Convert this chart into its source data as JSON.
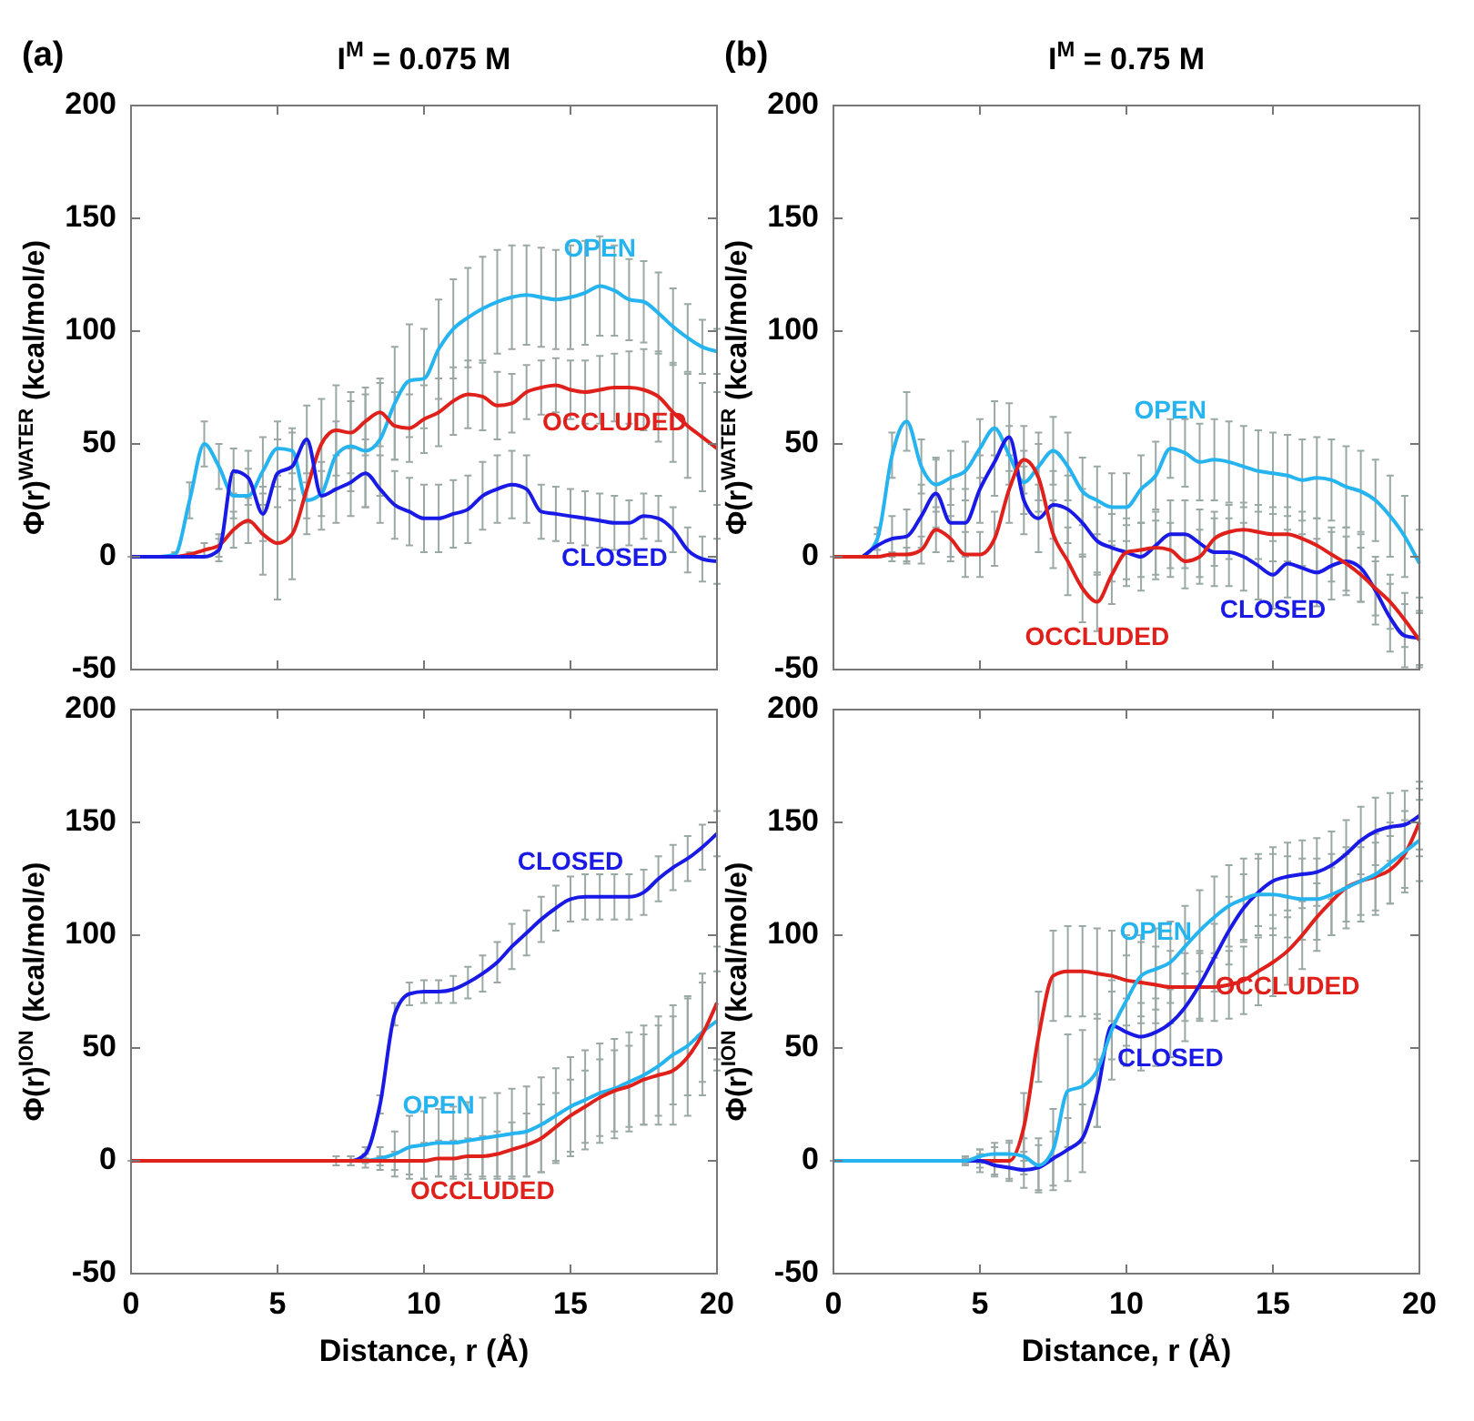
{
  "chart_data": [
    {
      "type": "line",
      "title": "I$^{M}$ = 0.075 M",
      "annotations": [
        "(a)"
      ],
      "ylabel": "Φ(r)$^{WATER}$ (kcal/mol/e)",
      "xlim": [
        0,
        20
      ],
      "xticks": [
        0,
        5,
        10,
        15,
        20
      ],
      "ylim": [
        -50,
        200
      ],
      "yticks": [
        -50,
        0,
        50,
        100,
        150,
        200
      ],
      "tick_labels": "y",
      "x": [
        0,
        0.5,
        1,
        1.5,
        2,
        2.5,
        3,
        3.5,
        4,
        4.5,
        5,
        5.5,
        6,
        6.5,
        7,
        7.5,
        8,
        8.5,
        9,
        9.5,
        10,
        10.5,
        11,
        11.5,
        12,
        12.5,
        13,
        13.5,
        14,
        14.5,
        15,
        15.5,
        16,
        16.5,
        17,
        17.5,
        18,
        18.5,
        19,
        19.5,
        20
      ],
      "series": [
        {
          "name": "OPEN",
          "color": "#25b4ef",
          "values": [
            null,
            null,
            0,
            1,
            25,
            50,
            40,
            27,
            27,
            38,
            48,
            47,
            25,
            28,
            45,
            49,
            47,
            52,
            68,
            78,
            79,
            92,
            101,
            106,
            110,
            113,
            115,
            116,
            115,
            114,
            115,
            117,
            120,
            118,
            114,
            113,
            108,
            102,
            97,
            93,
            91
          ],
          "errors": [
            null,
            null,
            0,
            1,
            8,
            10,
            10,
            10,
            12,
            15,
            12,
            10,
            8,
            10,
            15,
            20,
            25,
            25,
            25,
            25,
            22,
            22,
            22,
            22,
            23,
            23,
            23,
            22,
            22,
            22,
            23,
            23,
            22,
            20,
            18,
            18,
            18,
            17,
            15,
            12,
            10
          ]
        },
        {
          "name": "OCCLUDED",
          "color": "#e0201b",
          "values": [
            null,
            null,
            0,
            0,
            1,
            3,
            5,
            12,
            16,
            10,
            6,
            10,
            30,
            50,
            56,
            55,
            60,
            64,
            58,
            57,
            61,
            64,
            69,
            72,
            71,
            67,
            68,
            73,
            75,
            76,
            74,
            73,
            74,
            75,
            75,
            74,
            71,
            64,
            58,
            53,
            48
          ],
          "errors": [
            null,
            null,
            0,
            0,
            1,
            3,
            5,
            8,
            10,
            18,
            25,
            20,
            20,
            20,
            20,
            18,
            15,
            15,
            15,
            15,
            15,
            15,
            15,
            15,
            15,
            15,
            13,
            12,
            12,
            12,
            13,
            14,
            15,
            15,
            16,
            18,
            20,
            22,
            23,
            24,
            25
          ]
        },
        {
          "name": "CLOSED",
          "color": "#1a1ae6",
          "values": [
            0,
            0,
            0,
            0,
            0,
            0,
            3,
            38,
            35,
            19,
            37,
            40,
            52,
            27,
            30,
            33,
            37,
            30,
            23,
            20,
            17,
            17,
            19,
            21,
            27,
            30,
            32,
            30,
            20,
            19,
            18,
            17,
            16,
            15,
            15,
            18,
            17,
            12,
            3,
            -1,
            -2
          ],
          "errors": [
            0,
            0,
            0,
            0,
            0,
            0,
            5,
            10,
            12,
            12,
            15,
            15,
            15,
            15,
            15,
            15,
            15,
            15,
            15,
            15,
            15,
            15,
            15,
            15,
            15,
            15,
            15,
            15,
            12,
            12,
            12,
            12,
            12,
            12,
            10,
            10,
            10,
            10,
            10,
            10,
            10
          ]
        }
      ]
    },
    {
      "type": "line",
      "title": "I$^{M}$ = 0.75 M",
      "annotations": [
        "(b)"
      ],
      "ylabel": "Φ(r)$^{WATER}$ (kcal/mol/e)",
      "xlim": [
        0,
        20
      ],
      "xticks": [
        0,
        5,
        10,
        15,
        20
      ],
      "ylim": [
        -50,
        200
      ],
      "yticks": [
        -50,
        0,
        50,
        100,
        150,
        200
      ],
      "tick_labels": "y",
      "x": [
        0,
        0.5,
        1,
        1.5,
        2,
        2.5,
        3,
        3.5,
        4,
        4.5,
        5,
        5.5,
        6,
        6.5,
        7,
        7.5,
        8,
        8.5,
        9,
        9.5,
        10,
        10.5,
        11,
        11.5,
        12,
        12.5,
        13,
        13.5,
        14,
        14.5,
        15,
        15.5,
        16,
        16.5,
        17,
        17.5,
        18,
        18.5,
        19,
        19.5,
        20
      ],
      "series": [
        {
          "name": "OPEN",
          "color": "#25b4ef",
          "values": [
            null,
            null,
            0,
            8,
            45,
            60,
            40,
            32,
            35,
            38,
            48,
            57,
            45,
            33,
            40,
            47,
            40,
            29,
            25,
            22,
            22,
            30,
            36,
            48,
            46,
            42,
            43,
            42,
            40,
            38,
            37,
            36,
            34,
            35,
            34,
            31,
            29,
            25,
            18,
            9,
            -3
          ],
          "errors": [
            null,
            null,
            0,
            5,
            10,
            13,
            12,
            12,
            12,
            13,
            13,
            12,
            13,
            14,
            15,
            15,
            15,
            15,
            15,
            15,
            15,
            15,
            15,
            13,
            15,
            17,
            18,
            18,
            18,
            18,
            18,
            18,
            18,
            18,
            18,
            18,
            18,
            18,
            18,
            18,
            15
          ]
        },
        {
          "name": "CLOSED",
          "color": "#1a1ae6",
          "values": [
            null,
            null,
            0,
            5,
            8,
            9,
            18,
            28,
            15,
            15,
            30,
            42,
            53,
            25,
            17,
            23,
            21,
            15,
            7,
            4,
            2,
            0,
            5,
            10,
            10,
            6,
            2,
            2,
            0,
            -4,
            -8,
            -3,
            -5,
            -7,
            -4,
            -2,
            -5,
            -15,
            -27,
            -35,
            -36
          ],
          "errors": [
            null,
            null,
            0,
            5,
            10,
            12,
            14,
            15,
            15,
            15,
            15,
            15,
            15,
            15,
            15,
            15,
            15,
            15,
            15,
            15,
            15,
            15,
            15,
            15,
            15,
            15,
            15,
            15,
            15,
            15,
            15,
            15,
            15,
            15,
            15,
            15,
            15,
            15,
            15,
            14,
            12
          ]
        },
        {
          "name": "OCCLUDED",
          "color": "#e0201b",
          "values": [
            0,
            0,
            0,
            0,
            1,
            1,
            3,
            12,
            8,
            1,
            1,
            8,
            30,
            43,
            35,
            10,
            -2,
            -14,
            -20,
            -8,
            2,
            3,
            4,
            3,
            -2,
            0,
            8,
            11,
            12,
            11,
            10,
            10,
            8,
            5,
            1,
            -3,
            -8,
            -14,
            -20,
            -28,
            -37
          ],
          "errors": [
            0,
            0,
            0,
            0,
            1,
            3,
            6,
            10,
            10,
            10,
            10,
            12,
            15,
            15,
            15,
            15,
            15,
            15,
            13,
            13,
            12,
            12,
            12,
            12,
            12,
            12,
            12,
            12,
            12,
            12,
            12,
            12,
            12,
            12,
            12,
            12,
            12,
            12,
            12,
            12,
            12
          ]
        }
      ]
    },
    {
      "type": "line",
      "xlabel": "Distance, r (Å)",
      "ylabel": "Φ(r)$^{ION}$ (kcal/mol/e)",
      "xlim": [
        0,
        20
      ],
      "xticks": [
        0,
        5,
        10,
        15,
        20
      ],
      "ylim": [
        -50,
        200
      ],
      "yticks": [
        -50,
        0,
        50,
        100,
        150,
        200
      ],
      "x": [
        0,
        0.5,
        1,
        1.5,
        2,
        2.5,
        3,
        3.5,
        4,
        4.5,
        5,
        5.5,
        6,
        6.5,
        7,
        7.5,
        8,
        8.5,
        9,
        9.5,
        10,
        10.5,
        11,
        11.5,
        12,
        12.5,
        13,
        13.5,
        14,
        14.5,
        15,
        15.5,
        16,
        16.5,
        17,
        17.5,
        18,
        18.5,
        19,
        19.5,
        20
      ],
      "series": [
        {
          "name": "CLOSED",
          "color": "#1a1ae6",
          "values": [
            null,
            null,
            null,
            null,
            null,
            null,
            null,
            null,
            null,
            null,
            null,
            null,
            null,
            null,
            0,
            0,
            3,
            25,
            65,
            74,
            75,
            75,
            76,
            79,
            83,
            88,
            95,
            101,
            107,
            112,
            116,
            117,
            117,
            117,
            117,
            119,
            125,
            130,
            134,
            139,
            145
          ],
          "errors": [
            null,
            null,
            null,
            null,
            null,
            null,
            null,
            null,
            null,
            null,
            null,
            null,
            null,
            null,
            2,
            2,
            3,
            4,
            5,
            5,
            5,
            5,
            6,
            7,
            8,
            9,
            10,
            10,
            10,
            10,
            10,
            10,
            10,
            10,
            10,
            10,
            10,
            10,
            10,
            10,
            10
          ]
        },
        {
          "name": "OPEN",
          "color": "#25b4ef",
          "values": [
            null,
            null,
            null,
            null,
            null,
            null,
            null,
            null,
            null,
            null,
            null,
            null,
            null,
            null,
            null,
            0,
            0,
            1,
            3,
            6,
            7,
            8,
            8,
            9,
            10,
            11,
            12,
            13,
            16,
            20,
            24,
            27,
            30,
            32,
            35,
            38,
            42,
            47,
            51,
            57,
            62
          ],
          "errors": [
            null,
            null,
            null,
            null,
            null,
            null,
            null,
            null,
            null,
            null,
            null,
            null,
            null,
            null,
            null,
            2,
            3,
            5,
            10,
            14,
            15,
            15,
            16,
            17,
            18,
            19,
            20,
            20,
            21,
            21,
            22,
            22,
            22,
            22,
            22,
            22,
            22,
            22,
            22,
            22,
            22
          ]
        },
        {
          "name": "OCCLUDED",
          "color": "#e0201b",
          "values": [
            0,
            0,
            0,
            0,
            0,
            0,
            0,
            0,
            0,
            0,
            0,
            0,
            0,
            0,
            0,
            0,
            0,
            0,
            0,
            0,
            0,
            1,
            1,
            2,
            2,
            3,
            5,
            7,
            10,
            15,
            20,
            24,
            28,
            31,
            33,
            36,
            38,
            40,
            46,
            56,
            70
          ],
          "errors": [
            0,
            0,
            0,
            0,
            0,
            0,
            0,
            0,
            0,
            0,
            0,
            0,
            0,
            0,
            0,
            0,
            1,
            2,
            4,
            6,
            8,
            8,
            8,
            8,
            9,
            10,
            12,
            14,
            15,
            15,
            16,
            16,
            17,
            18,
            18,
            20,
            22,
            24,
            26,
            27,
            25
          ]
        }
      ]
    },
    {
      "type": "line",
      "xlabel": "Distance, r (Å)",
      "ylabel": "Φ(r)$^{ION}$ (kcal/mol/e)",
      "xlim": [
        0,
        20
      ],
      "xticks": [
        0,
        5,
        10,
        15,
        20
      ],
      "ylim": [
        -50,
        200
      ],
      "yticks": [
        -50,
        0,
        50,
        100,
        150,
        200
      ],
      "x": [
        0,
        0.5,
        1,
        1.5,
        2,
        2.5,
        3,
        3.5,
        4,
        4.5,
        5,
        5.5,
        6,
        6.5,
        7,
        7.5,
        8,
        8.5,
        9,
        9.5,
        10,
        10.5,
        11,
        11.5,
        12,
        12.5,
        13,
        13.5,
        14,
        14.5,
        15,
        15.5,
        16,
        16.5,
        17,
        17.5,
        18,
        18.5,
        19,
        19.5,
        20
      ],
      "series": [
        {
          "name": "OCCLUDED",
          "color": "#e0201b",
          "values": [
            null,
            null,
            null,
            null,
            null,
            null,
            null,
            null,
            0,
            0,
            0,
            0,
            0,
            15,
            55,
            82,
            84,
            84,
            83,
            82,
            80,
            79,
            78,
            77,
            77,
            77,
            77,
            78,
            80,
            84,
            88,
            93,
            100,
            108,
            115,
            121,
            124,
            126,
            129,
            136,
            150
          ],
          "errors": [
            null,
            null,
            null,
            null,
            null,
            null,
            null,
            null,
            0,
            2,
            5,
            6,
            8,
            15,
            20,
            20,
            20,
            20,
            20,
            20,
            20,
            18,
            17,
            16,
            15,
            15,
            15,
            15,
            15,
            15,
            15,
            15,
            15,
            15,
            15,
            15,
            15,
            15,
            15,
            15,
            15
          ]
        },
        {
          "name": "CLOSED",
          "color": "#1a1ae6",
          "values": [
            null,
            null,
            null,
            null,
            null,
            null,
            null,
            null,
            0,
            0,
            0,
            -2,
            -3,
            -4,
            -3,
            1,
            5,
            10,
            30,
            60,
            57,
            55,
            57,
            61,
            68,
            78,
            90,
            102,
            112,
            119,
            124,
            126,
            127,
            128,
            131,
            136,
            142,
            146,
            148,
            149,
            153
          ],
          "errors": [
            null,
            null,
            null,
            null,
            null,
            null,
            null,
            null,
            0,
            1,
            3,
            5,
            6,
            8,
            10,
            12,
            14,
            15,
            15,
            15,
            15,
            15,
            15,
            15,
            15,
            15,
            15,
            15,
            15,
            15,
            15,
            15,
            15,
            15,
            15,
            15,
            15,
            15,
            15,
            15,
            15
          ]
        },
        {
          "name": "OPEN",
          "color": "#25b4ef",
          "values": [
            0,
            0,
            0,
            0,
            0,
            0,
            0,
            0,
            0,
            0,
            2,
            3,
            3,
            2,
            -2,
            5,
            31,
            33,
            40,
            58,
            71,
            82,
            85,
            88,
            95,
            102,
            108,
            113,
            116,
            118,
            118,
            117,
            116,
            116,
            118,
            121,
            124,
            127,
            132,
            137,
            142
          ],
          "errors": [
            0,
            0,
            0,
            0,
            0,
            0,
            0,
            0,
            0,
            1,
            3,
            5,
            6,
            8,
            12,
            18,
            25,
            25,
            25,
            22,
            20,
            18,
            18,
            18,
            18,
            18,
            18,
            18,
            18,
            18,
            18,
            18,
            18,
            18,
            18,
            18,
            18,
            18,
            18,
            18,
            18
          ]
        }
      ]
    }
  ]
}
